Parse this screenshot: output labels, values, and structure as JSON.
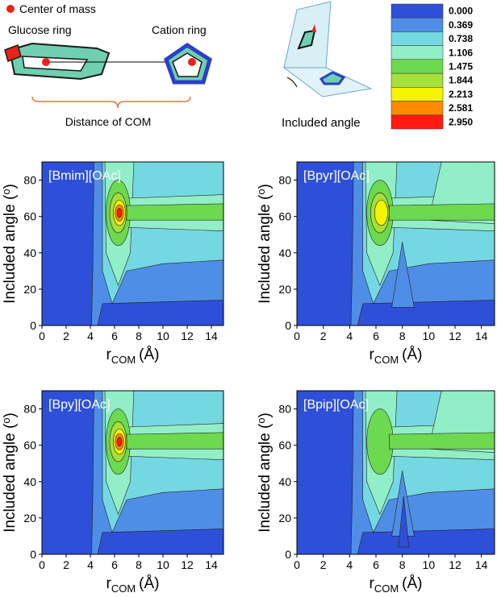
{
  "diagram": {
    "center_label": "Center of mass",
    "glucose_label": "Glucose ring",
    "cation_label": "Cation ring",
    "distance_label": "Distance of COM",
    "angle_label": "Included angle"
  },
  "colorbar": {
    "levels": [
      {
        "value": 0,
        "label": "0.000"
      },
      {
        "value": 0.369,
        "label": "0.369"
      },
      {
        "value": 0.738,
        "label": "0.738"
      },
      {
        "value": 1.106,
        "label": "1.106"
      },
      {
        "value": 1.475,
        "label": "1.475"
      },
      {
        "value": 1.844,
        "label": "1.844"
      },
      {
        "value": 2.213,
        "label": "2.213"
      },
      {
        "value": 2.581,
        "label": "2.581"
      },
      {
        "value": 2.95,
        "label": "2.950"
      }
    ],
    "colors": [
      "#2e4fd8",
      "#4f8ee6",
      "#74d8e2",
      "#92eec6",
      "#6cd94e",
      "#a6e03a",
      "#f4f400",
      "#ff8a00",
      "#ff1a10"
    ]
  },
  "chart_data": [
    {
      "type": "contour",
      "title": "[Bmim][OAc]",
      "xlabel": "r",
      "xlabel_subscript": "COM",
      "xlabel_unit": "(Å)",
      "ylabel": "Included angle (",
      "ylabel_superscript": "o",
      "ylabel_end": ")",
      "xlim": [
        0,
        15
      ],
      "ylim": [
        0,
        90
      ],
      "xticks": [
        0,
        2,
        4,
        6,
        8,
        10,
        12,
        14
      ],
      "yticks": [
        0,
        20,
        40,
        60,
        80
      ]
    },
    {
      "type": "contour",
      "title": "[Bpyr][OAc]",
      "xlabel": "r",
      "xlabel_subscript": "COM",
      "xlabel_unit": "(Å)",
      "ylabel": "Included angle (",
      "ylabel_superscript": "o",
      "ylabel_end": ")",
      "xlim": [
        0,
        15
      ],
      "ylim": [
        0,
        90
      ],
      "xticks": [
        0,
        2,
        4,
        6,
        8,
        10,
        12,
        14
      ],
      "yticks": [
        0,
        20,
        40,
        60,
        80
      ]
    },
    {
      "type": "contour",
      "title": "[Bpy][OAc]",
      "xlabel": "r",
      "xlabel_subscript": "COM",
      "xlabel_unit": "(Å)",
      "ylabel": "Included angle (",
      "ylabel_superscript": "o",
      "ylabel_end": ")",
      "xlim": [
        0,
        15
      ],
      "ylim": [
        0,
        90
      ],
      "xticks": [
        0,
        2,
        4,
        6,
        8,
        10,
        12,
        14
      ],
      "yticks": [
        0,
        20,
        40,
        60,
        80
      ]
    },
    {
      "type": "contour",
      "title": "[Bpip][OAc]",
      "xlabel": "r",
      "xlabel_subscript": "COM",
      "xlabel_unit": "(Å)",
      "ylabel": "Included angle (",
      "ylabel_superscript": "o",
      "ylabel_end": ")",
      "xlim": [
        0,
        15
      ],
      "ylim": [
        0,
        90
      ],
      "xticks": [
        0,
        2,
        4,
        6,
        8,
        10,
        12,
        14
      ],
      "yticks": [
        0,
        20,
        40,
        60,
        80
      ]
    }
  ]
}
